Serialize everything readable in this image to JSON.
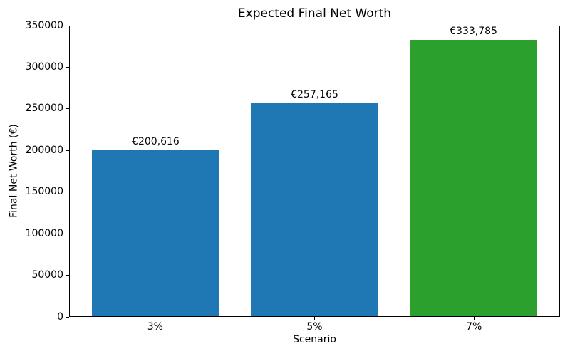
{
  "chart_data": {
    "type": "bar",
    "title": "Expected Final Net Worth",
    "xlabel": "Scenario",
    "ylabel": "Final Net Worth (€)",
    "categories": [
      "3%",
      "5%",
      "7%"
    ],
    "values": [
      200616,
      257165,
      333785
    ],
    "bar_labels": [
      "€200,616",
      "€257,165",
      "€333,785"
    ],
    "bar_colors": [
      "#1f77b4",
      "#1f77b4",
      "#2ca02c"
    ],
    "ylim": [
      0,
      350000
    ],
    "yticks": [
      0,
      50000,
      100000,
      150000,
      200000,
      250000,
      300000,
      350000
    ],
    "grid": false,
    "legend_position": "none",
    "spine_color": "#000000",
    "background_color": "#ffffff",
    "text_color": "#000000"
  }
}
